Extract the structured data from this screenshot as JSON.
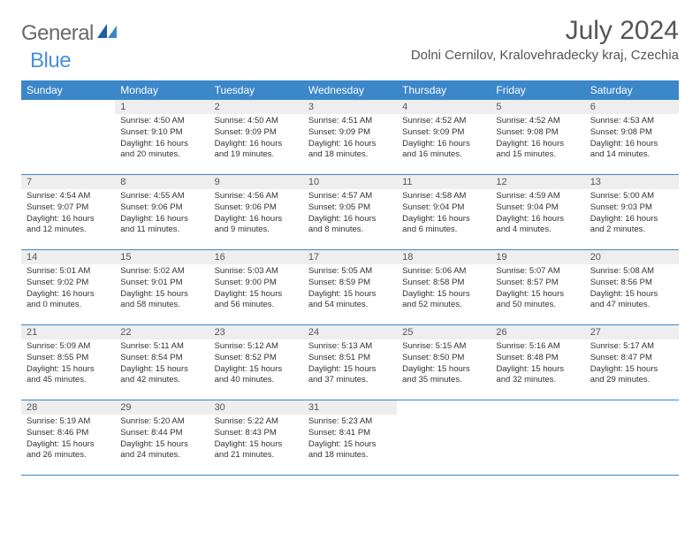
{
  "logo": {
    "text_gray": "General",
    "text_blue": "Blue"
  },
  "header": {
    "month_title": "July 2024",
    "location": "Dolni Cernilov, Kralovehradecky kraj, Czechia"
  },
  "weekdays": [
    "Sunday",
    "Monday",
    "Tuesday",
    "Wednesday",
    "Thursday",
    "Friday",
    "Saturday"
  ],
  "colors": {
    "header_bar": "#3b87c8",
    "daynum_bg": "#eeeeee",
    "row_border": "#3b87c8",
    "text_gray": "#555555",
    "logo_blue": "#4a90d9"
  },
  "weeks": [
    [
      {
        "num": "",
        "lines": []
      },
      {
        "num": "1",
        "lines": [
          "Sunrise: 4:50 AM",
          "Sunset: 9:10 PM",
          "Daylight: 16 hours",
          "and 20 minutes."
        ]
      },
      {
        "num": "2",
        "lines": [
          "Sunrise: 4:50 AM",
          "Sunset: 9:09 PM",
          "Daylight: 16 hours",
          "and 19 minutes."
        ]
      },
      {
        "num": "3",
        "lines": [
          "Sunrise: 4:51 AM",
          "Sunset: 9:09 PM",
          "Daylight: 16 hours",
          "and 18 minutes."
        ]
      },
      {
        "num": "4",
        "lines": [
          "Sunrise: 4:52 AM",
          "Sunset: 9:09 PM",
          "Daylight: 16 hours",
          "and 16 minutes."
        ]
      },
      {
        "num": "5",
        "lines": [
          "Sunrise: 4:52 AM",
          "Sunset: 9:08 PM",
          "Daylight: 16 hours",
          "and 15 minutes."
        ]
      },
      {
        "num": "6",
        "lines": [
          "Sunrise: 4:53 AM",
          "Sunset: 9:08 PM",
          "Daylight: 16 hours",
          "and 14 minutes."
        ]
      }
    ],
    [
      {
        "num": "7",
        "lines": [
          "Sunrise: 4:54 AM",
          "Sunset: 9:07 PM",
          "Daylight: 16 hours",
          "and 12 minutes."
        ]
      },
      {
        "num": "8",
        "lines": [
          "Sunrise: 4:55 AM",
          "Sunset: 9:06 PM",
          "Daylight: 16 hours",
          "and 11 minutes."
        ]
      },
      {
        "num": "9",
        "lines": [
          "Sunrise: 4:56 AM",
          "Sunset: 9:06 PM",
          "Daylight: 16 hours",
          "and 9 minutes."
        ]
      },
      {
        "num": "10",
        "lines": [
          "Sunrise: 4:57 AM",
          "Sunset: 9:05 PM",
          "Daylight: 16 hours",
          "and 8 minutes."
        ]
      },
      {
        "num": "11",
        "lines": [
          "Sunrise: 4:58 AM",
          "Sunset: 9:04 PM",
          "Daylight: 16 hours",
          "and 6 minutes."
        ]
      },
      {
        "num": "12",
        "lines": [
          "Sunrise: 4:59 AM",
          "Sunset: 9:04 PM",
          "Daylight: 16 hours",
          "and 4 minutes."
        ]
      },
      {
        "num": "13",
        "lines": [
          "Sunrise: 5:00 AM",
          "Sunset: 9:03 PM",
          "Daylight: 16 hours",
          "and 2 minutes."
        ]
      }
    ],
    [
      {
        "num": "14",
        "lines": [
          "Sunrise: 5:01 AM",
          "Sunset: 9:02 PM",
          "Daylight: 16 hours",
          "and 0 minutes."
        ]
      },
      {
        "num": "15",
        "lines": [
          "Sunrise: 5:02 AM",
          "Sunset: 9:01 PM",
          "Daylight: 15 hours",
          "and 58 minutes."
        ]
      },
      {
        "num": "16",
        "lines": [
          "Sunrise: 5:03 AM",
          "Sunset: 9:00 PM",
          "Daylight: 15 hours",
          "and 56 minutes."
        ]
      },
      {
        "num": "17",
        "lines": [
          "Sunrise: 5:05 AM",
          "Sunset: 8:59 PM",
          "Daylight: 15 hours",
          "and 54 minutes."
        ]
      },
      {
        "num": "18",
        "lines": [
          "Sunrise: 5:06 AM",
          "Sunset: 8:58 PM",
          "Daylight: 15 hours",
          "and 52 minutes."
        ]
      },
      {
        "num": "19",
        "lines": [
          "Sunrise: 5:07 AM",
          "Sunset: 8:57 PM",
          "Daylight: 15 hours",
          "and 50 minutes."
        ]
      },
      {
        "num": "20",
        "lines": [
          "Sunrise: 5:08 AM",
          "Sunset: 8:56 PM",
          "Daylight: 15 hours",
          "and 47 minutes."
        ]
      }
    ],
    [
      {
        "num": "21",
        "lines": [
          "Sunrise: 5:09 AM",
          "Sunset: 8:55 PM",
          "Daylight: 15 hours",
          "and 45 minutes."
        ]
      },
      {
        "num": "22",
        "lines": [
          "Sunrise: 5:11 AM",
          "Sunset: 8:54 PM",
          "Daylight: 15 hours",
          "and 42 minutes."
        ]
      },
      {
        "num": "23",
        "lines": [
          "Sunrise: 5:12 AM",
          "Sunset: 8:52 PM",
          "Daylight: 15 hours",
          "and 40 minutes."
        ]
      },
      {
        "num": "24",
        "lines": [
          "Sunrise: 5:13 AM",
          "Sunset: 8:51 PM",
          "Daylight: 15 hours",
          "and 37 minutes."
        ]
      },
      {
        "num": "25",
        "lines": [
          "Sunrise: 5:15 AM",
          "Sunset: 8:50 PM",
          "Daylight: 15 hours",
          "and 35 minutes."
        ]
      },
      {
        "num": "26",
        "lines": [
          "Sunrise: 5:16 AM",
          "Sunset: 8:48 PM",
          "Daylight: 15 hours",
          "and 32 minutes."
        ]
      },
      {
        "num": "27",
        "lines": [
          "Sunrise: 5:17 AM",
          "Sunset: 8:47 PM",
          "Daylight: 15 hours",
          "and 29 minutes."
        ]
      }
    ],
    [
      {
        "num": "28",
        "lines": [
          "Sunrise: 5:19 AM",
          "Sunset: 8:46 PM",
          "Daylight: 15 hours",
          "and 26 minutes."
        ]
      },
      {
        "num": "29",
        "lines": [
          "Sunrise: 5:20 AM",
          "Sunset: 8:44 PM",
          "Daylight: 15 hours",
          "and 24 minutes."
        ]
      },
      {
        "num": "30",
        "lines": [
          "Sunrise: 5:22 AM",
          "Sunset: 8:43 PM",
          "Daylight: 15 hours",
          "and 21 minutes."
        ]
      },
      {
        "num": "31",
        "lines": [
          "Sunrise: 5:23 AM",
          "Sunset: 8:41 PM",
          "Daylight: 15 hours",
          "and 18 minutes."
        ]
      },
      {
        "num": "",
        "lines": []
      },
      {
        "num": "",
        "lines": []
      },
      {
        "num": "",
        "lines": []
      }
    ]
  ]
}
